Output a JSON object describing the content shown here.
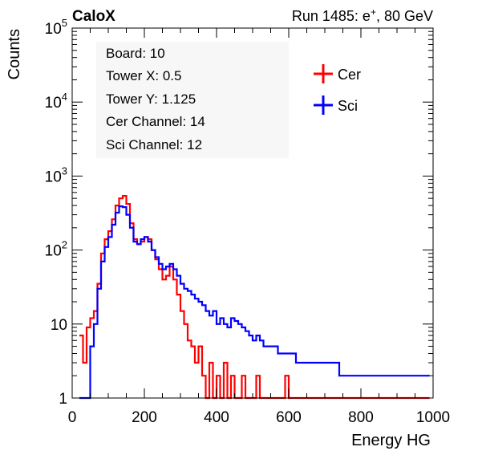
{
  "header": {
    "left_title": "CaloX",
    "run_prefix": "Run 1485: e",
    "run_sup": "+",
    "run_suffix": ", 80 GeV"
  },
  "info_box": {
    "lines": [
      "Board: 10",
      "Tower X: 0.5",
      "Tower Y: 1.125",
      "Cer Channel: 14",
      "Sci Channel: 12"
    ]
  },
  "chart_data": {
    "type": "line",
    "subtype": "step-histogram",
    "xlabel": "Energy HG",
    "ylabel": "Counts",
    "xlim": [
      0,
      1000
    ],
    "ylim": [
      1,
      100000
    ],
    "yscale": "log",
    "xticks": [
      "0",
      "200",
      "400",
      "600",
      "800",
      "1000"
    ],
    "yticks": [
      {
        "value": 1,
        "label": "1"
      },
      {
        "value": 10,
        "label": "10"
      },
      {
        "value": 100,
        "base": "10",
        "exp": "2"
      },
      {
        "value": 1000,
        "base": "10",
        "exp": "3"
      },
      {
        "value": 10000,
        "base": "10",
        "exp": "4"
      },
      {
        "value": 100000,
        "base": "10",
        "exp": "5"
      }
    ],
    "legend_position": "top-right",
    "series": [
      {
        "name": "Cer",
        "color": "#ff0000",
        "points": [
          [
            20,
            7
          ],
          [
            30,
            3
          ],
          [
            40,
            9
          ],
          [
            50,
            12
          ],
          [
            60,
            15
          ],
          [
            70,
            35
          ],
          [
            80,
            90
          ],
          [
            90,
            140
          ],
          [
            100,
            180
          ],
          [
            110,
            260
          ],
          [
            120,
            400
          ],
          [
            130,
            500
          ],
          [
            140,
            540
          ],
          [
            150,
            420
          ],
          [
            160,
            230
          ],
          [
            170,
            140
          ],
          [
            180,
            120
          ],
          [
            190,
            130
          ],
          [
            200,
            150
          ],
          [
            210,
            140
          ],
          [
            220,
            100
          ],
          [
            230,
            75
          ],
          [
            240,
            55
          ],
          [
            250,
            40
          ],
          [
            260,
            45
          ],
          [
            270,
            60
          ],
          [
            280,
            40
          ],
          [
            290,
            25
          ],
          [
            300,
            15
          ],
          [
            310,
            10
          ],
          [
            320,
            6
          ],
          [
            330,
            5
          ],
          [
            340,
            3
          ],
          [
            350,
            5
          ],
          [
            360,
            2
          ],
          [
            370,
            1
          ],
          [
            380,
            3
          ],
          [
            390,
            1
          ],
          [
            400,
            2
          ],
          [
            410,
            1
          ],
          [
            420,
            3
          ],
          [
            430,
            1
          ],
          [
            440,
            2
          ],
          [
            450,
            1
          ],
          [
            460,
            1
          ],
          [
            470,
            2
          ],
          [
            480,
            1
          ],
          [
            490,
            1
          ],
          [
            500,
            1
          ],
          [
            510,
            2
          ],
          [
            520,
            1
          ],
          [
            530,
            1
          ],
          [
            540,
            1
          ],
          [
            550,
            1
          ],
          [
            560,
            1
          ],
          [
            570,
            1
          ],
          [
            580,
            1
          ],
          [
            590,
            2
          ],
          [
            600,
            1
          ],
          [
            620,
            1
          ],
          [
            640,
            1
          ],
          [
            660,
            1
          ],
          [
            680,
            1
          ],
          [
            700,
            1
          ],
          [
            720,
            1
          ],
          [
            740,
            1
          ],
          [
            760,
            1
          ],
          [
            780,
            1
          ],
          [
            800,
            1
          ],
          [
            820,
            1
          ],
          [
            840,
            1
          ],
          [
            860,
            1
          ],
          [
            880,
            1
          ],
          [
            900,
            1
          ],
          [
            920,
            1
          ],
          [
            940,
            1
          ],
          [
            960,
            1
          ],
          [
            980,
            1
          ]
        ]
      },
      {
        "name": "Sci",
        "color": "#0000ff",
        "points": [
          [
            20,
            1
          ],
          [
            30,
            1
          ],
          [
            40,
            1
          ],
          [
            50,
            5
          ],
          [
            60,
            10
          ],
          [
            70,
            30
          ],
          [
            80,
            70
          ],
          [
            90,
            110
          ],
          [
            100,
            150
          ],
          [
            110,
            220
          ],
          [
            120,
            320
          ],
          [
            130,
            390
          ],
          [
            140,
            380
          ],
          [
            150,
            300
          ],
          [
            160,
            200
          ],
          [
            170,
            130
          ],
          [
            180,
            120
          ],
          [
            190,
            140
          ],
          [
            200,
            150
          ],
          [
            210,
            130
          ],
          [
            220,
            100
          ],
          [
            230,
            80
          ],
          [
            240,
            65
          ],
          [
            250,
            55
          ],
          [
            260,
            60
          ],
          [
            270,
            65
          ],
          [
            280,
            55
          ],
          [
            290,
            45
          ],
          [
            300,
            35
          ],
          [
            310,
            30
          ],
          [
            320,
            28
          ],
          [
            330,
            25
          ],
          [
            340,
            22
          ],
          [
            350,
            20
          ],
          [
            360,
            18
          ],
          [
            370,
            15
          ],
          [
            380,
            13
          ],
          [
            390,
            15
          ],
          [
            400,
            10
          ],
          [
            410,
            12
          ],
          [
            420,
            10
          ],
          [
            430,
            9
          ],
          [
            440,
            12
          ],
          [
            450,
            11
          ],
          [
            460,
            10
          ],
          [
            470,
            9
          ],
          [
            480,
            8
          ],
          [
            490,
            7
          ],
          [
            500,
            6
          ],
          [
            510,
            7
          ],
          [
            520,
            6
          ],
          [
            530,
            5
          ],
          [
            540,
            5
          ],
          [
            550,
            5
          ],
          [
            560,
            5
          ],
          [
            570,
            4
          ],
          [
            580,
            4
          ],
          [
            590,
            4
          ],
          [
            600,
            4
          ],
          [
            620,
            3
          ],
          [
            640,
            3
          ],
          [
            660,
            3
          ],
          [
            680,
            3
          ],
          [
            700,
            3
          ],
          [
            720,
            3
          ],
          [
            740,
            2
          ],
          [
            760,
            2
          ],
          [
            780,
            2
          ],
          [
            800,
            2
          ],
          [
            820,
            2
          ],
          [
            840,
            2
          ],
          [
            860,
            2
          ],
          [
            880,
            2
          ],
          [
            900,
            2
          ],
          [
            920,
            2
          ],
          [
            940,
            2
          ],
          [
            960,
            2
          ],
          [
            980,
            2
          ]
        ]
      }
    ]
  }
}
